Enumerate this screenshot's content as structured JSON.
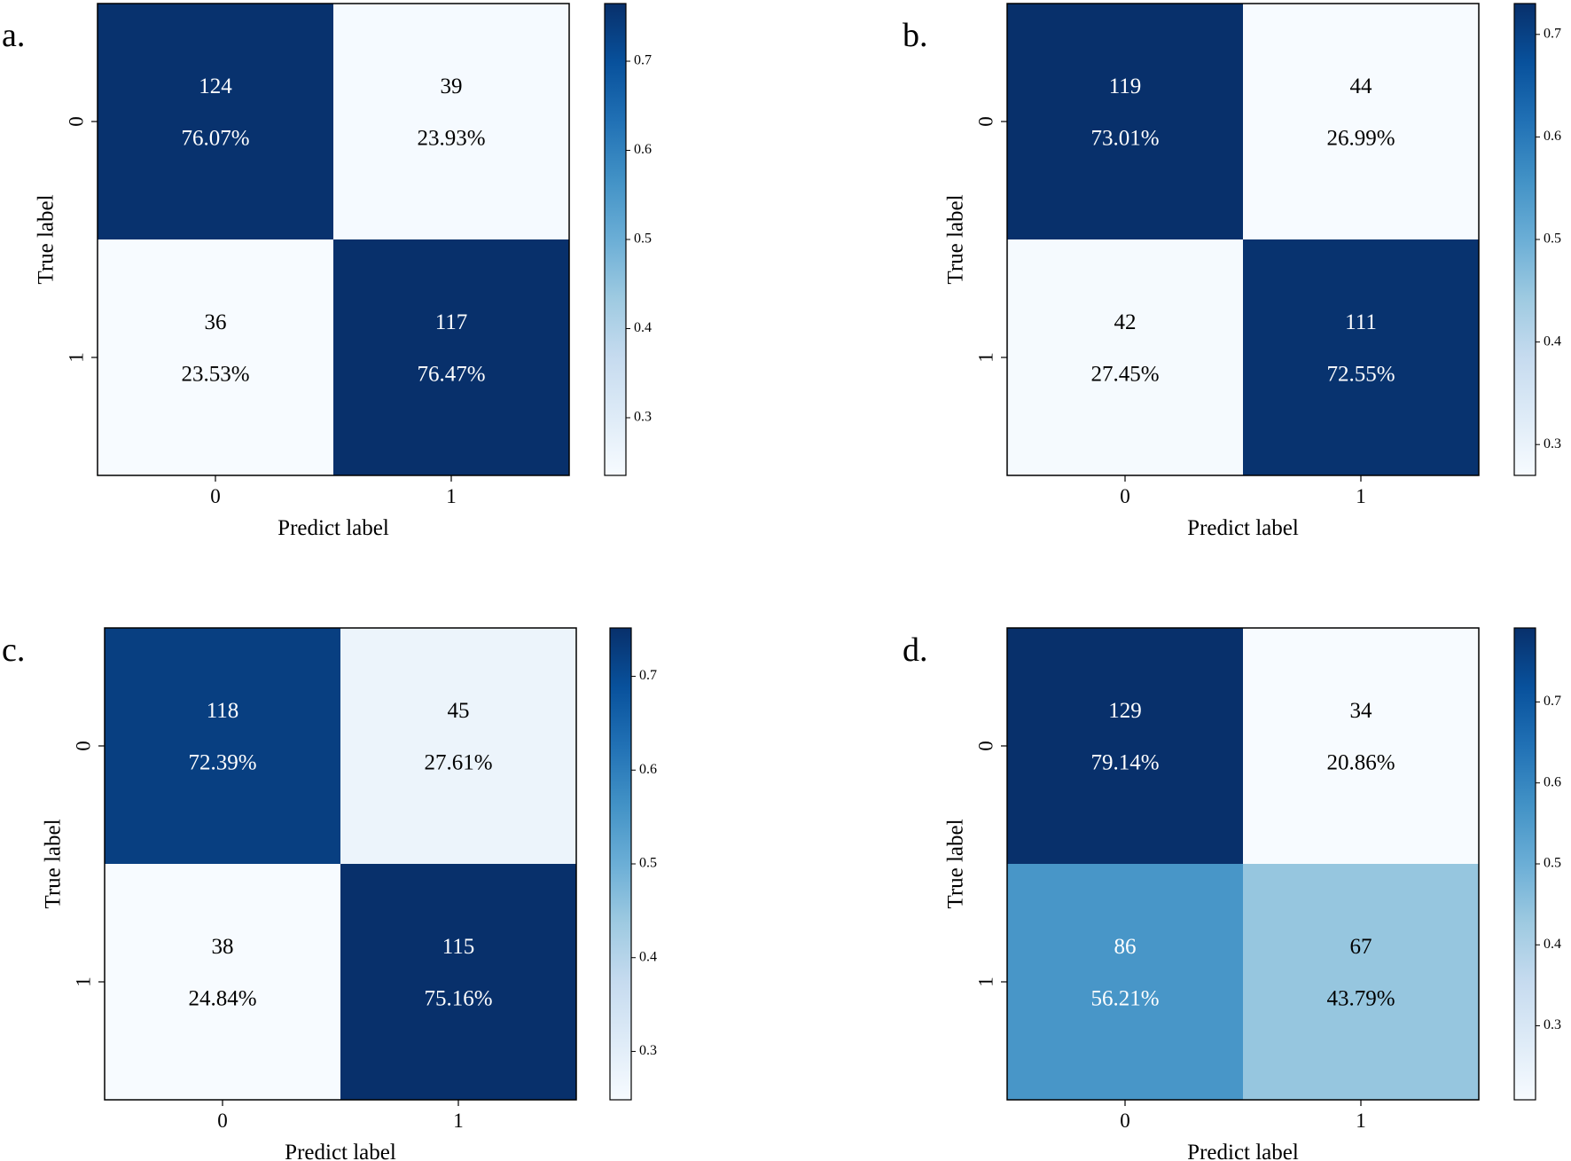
{
  "chart_data": [
    {
      "type": "heatmap",
      "panel_label": "a.",
      "xlabel": "Predict label",
      "ylabel": "True label",
      "x_ticks": [
        "0",
        "1"
      ],
      "y_ticks": [
        "0",
        "1"
      ],
      "counts": [
        [
          124,
          39
        ],
        [
          36,
          117
        ]
      ],
      "percent_labels": [
        [
          "76.07%",
          "23.93%"
        ],
        [
          "23.53%",
          "76.47%"
        ]
      ],
      "values": [
        [
          0.7607,
          0.2393
        ],
        [
          0.2353,
          0.7647
        ]
      ],
      "colorbar": {
        "range": [
          0.2353,
          0.7647
        ],
        "ticks": [
          "0.3",
          "0.4",
          "0.5",
          "0.6",
          "0.7"
        ]
      }
    },
    {
      "type": "heatmap",
      "panel_label": "b.",
      "xlabel": "Predict label",
      "ylabel": "True label",
      "x_ticks": [
        "0",
        "1"
      ],
      "y_ticks": [
        "0",
        "1"
      ],
      "counts": [
        [
          119,
          44
        ],
        [
          42,
          111
        ]
      ],
      "percent_labels": [
        [
          "73.01%",
          "26.99%"
        ],
        [
          "27.45%",
          "72.55%"
        ]
      ],
      "values": [
        [
          0.7301,
          0.2699
        ],
        [
          0.2745,
          0.7255
        ]
      ],
      "colorbar": {
        "range": [
          0.2699,
          0.7301
        ],
        "ticks": [
          "0.3",
          "0.4",
          "0.5",
          "0.6",
          "0.7"
        ]
      }
    },
    {
      "type": "heatmap",
      "panel_label": "c.",
      "xlabel": "Predict label",
      "ylabel": "True label",
      "x_ticks": [
        "0",
        "1"
      ],
      "y_ticks": [
        "0",
        "1"
      ],
      "counts": [
        [
          118,
          45
        ],
        [
          38,
          115
        ]
      ],
      "percent_labels": [
        [
          "72.39%",
          "27.61%"
        ],
        [
          "24.84%",
          "75.16%"
        ]
      ],
      "values": [
        [
          0.7239,
          0.2761
        ],
        [
          0.2484,
          0.7516
        ]
      ],
      "colorbar": {
        "range": [
          0.2484,
          0.7516
        ],
        "ticks": [
          "0.3",
          "0.4",
          "0.5",
          "0.6",
          "0.7"
        ]
      }
    },
    {
      "type": "heatmap",
      "panel_label": "d.",
      "xlabel": "Predict label",
      "ylabel": "True label",
      "x_ticks": [
        "0",
        "1"
      ],
      "y_ticks": [
        "0",
        "1"
      ],
      "counts": [
        [
          129,
          34
        ],
        [
          86,
          67
        ]
      ],
      "percent_labels": [
        [
          "79.14%",
          "20.86%"
        ],
        [
          "56.21%",
          "43.79%"
        ]
      ],
      "values": [
        [
          0.7914,
          0.2086
        ],
        [
          0.5621,
          0.4379
        ]
      ],
      "colorbar": {
        "range": [
          0.2086,
          0.7914
        ],
        "ticks": [
          "0.3",
          "0.4",
          "0.5",
          "0.6",
          "0.7"
        ]
      }
    }
  ]
}
